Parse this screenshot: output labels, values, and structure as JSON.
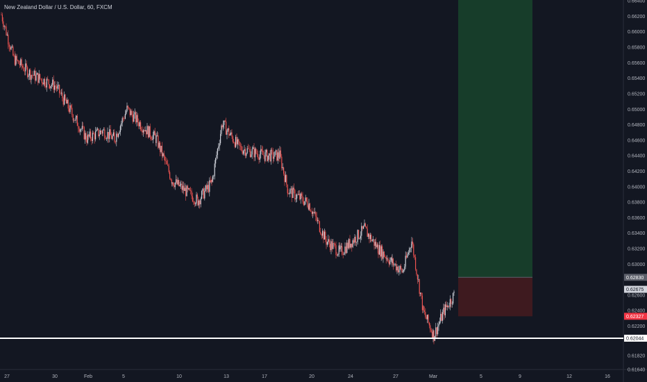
{
  "header": {
    "title": "New Zealand Dollar / U.S. Dollar, 60, FXCM"
  },
  "colors": {
    "background": "#131722",
    "text": "#b2b5be",
    "axis_line": "#2a2e39",
    "candle_down": "#ef5350",
    "candle_up": "#d1d4dc",
    "profit_zone": "#173d2a",
    "loss_zone": "#3e1a1f",
    "support_line": "#ffffff",
    "stop_label": "#f23645"
  },
  "chart_data": {
    "type": "line",
    "symbol": "NZDUSD",
    "timeframe": "60",
    "ylim": [
      0.6164,
      0.6641
    ],
    "y_ticks": [
      "0.66400",
      "0.66200",
      "0.66000",
      "0.65800",
      "0.65600",
      "0.65400",
      "0.65200",
      "0.65000",
      "0.64800",
      "0.64600",
      "0.64400",
      "0.64200",
      "0.64000",
      "0.63800",
      "0.63600",
      "0.63400",
      "0.63200",
      "0.63000",
      "0.62600",
      "0.62400",
      "0.62200",
      "0.61820",
      "0.61640"
    ],
    "x_ticks": [
      "27",
      "30",
      "Feb",
      "5",
      "10",
      "13",
      "17",
      "20",
      "24",
      "27",
      "Mar",
      "5",
      "9",
      "12",
      "16"
    ],
    "price_path": [
      {
        "x": "27",
        "y": 0.6622
      },
      {
        "x": "28",
        "y": 0.6565
      },
      {
        "x": "29",
        "y": 0.6545
      },
      {
        "x": "30",
        "y": 0.653
      },
      {
        "x": "31",
        "y": 0.6485
      },
      {
        "x": "Feb",
        "y": 0.6462
      },
      {
        "x": "3",
        "y": 0.6472
      },
      {
        "x": "4",
        "y": 0.6462
      },
      {
        "x": "5",
        "y": 0.65
      },
      {
        "x": "6",
        "y": 0.6478
      },
      {
        "x": "7",
        "y": 0.6462
      },
      {
        "x": "8",
        "y": 0.6408
      },
      {
        "x": "10",
        "y": 0.6382
      },
      {
        "x": "11",
        "y": 0.6405
      },
      {
        "x": "12",
        "y": 0.6482
      },
      {
        "x": "13",
        "y": 0.645
      },
      {
        "x": "14",
        "y": 0.644
      },
      {
        "x": "17",
        "y": 0.644
      },
      {
        "x": "18",
        "y": 0.6395
      },
      {
        "x": "19",
        "y": 0.6378
      },
      {
        "x": "20",
        "y": 0.633
      },
      {
        "x": "21",
        "y": 0.6315
      },
      {
        "x": "22",
        "y": 0.6345
      },
      {
        "x": "24",
        "y": 0.632
      },
      {
        "x": "25",
        "y": 0.6302
      },
      {
        "x": "26",
        "y": 0.629
      },
      {
        "x": "27",
        "y": 0.633
      },
      {
        "x": "28",
        "y": 0.6238
      },
      {
        "x": "Mar",
        "y": 0.6208
      },
      {
        "x": "2",
        "y": 0.624
      },
      {
        "x": "3",
        "y": 0.6262
      }
    ],
    "position": {
      "type": "long",
      "entry": 0.6283,
      "stop": 0.62327,
      "target": 0.6641
    },
    "support_level": 0.62044,
    "last_price": 0.62675,
    "price_labels": [
      {
        "name": "entry",
        "text": "0.62830"
      },
      {
        "name": "last",
        "text": "0.62675"
      },
      {
        "name": "stop",
        "text": "0.62327"
      },
      {
        "name": "support",
        "text": "0.62044"
      }
    ]
  }
}
